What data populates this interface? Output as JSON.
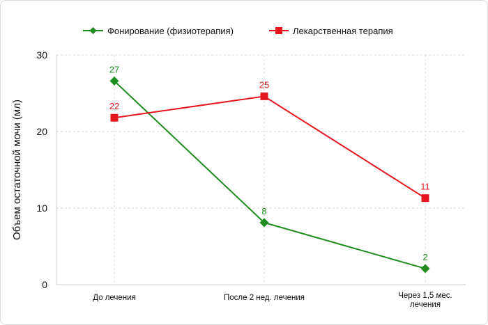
{
  "chart_data": {
    "type": "line",
    "title": "",
    "xlabel": "",
    "ylabel": "Объем остаточной мочи (мл)",
    "ylim": [
      0,
      30
    ],
    "yticks": [
      0,
      10,
      20,
      30
    ],
    "categories": [
      "До лечения",
      "После 2 нед. лечения",
      "Через 1,5 мес. лечения"
    ],
    "category_lines": [
      [
        "До лечения"
      ],
      [
        "После 2 нед. лечения"
      ],
      [
        "Через 1,5 мес.",
        "лечения"
      ]
    ],
    "legend_position": "top",
    "grid": "dashed",
    "series": [
      {
        "name": "Фонирование (физиотерапия)",
        "color": "#1e8c1e",
        "marker": "diamond",
        "values": [
          26.6,
          8.1,
          2.1
        ],
        "labels": [
          "27",
          "8",
          "2"
        ]
      },
      {
        "name": "Лекарственная терапия",
        "color": "#e3151f",
        "marker": "square",
        "values": [
          21.8,
          24.6,
          11.3
        ],
        "labels": [
          "22",
          "25",
          "11"
        ]
      }
    ]
  }
}
